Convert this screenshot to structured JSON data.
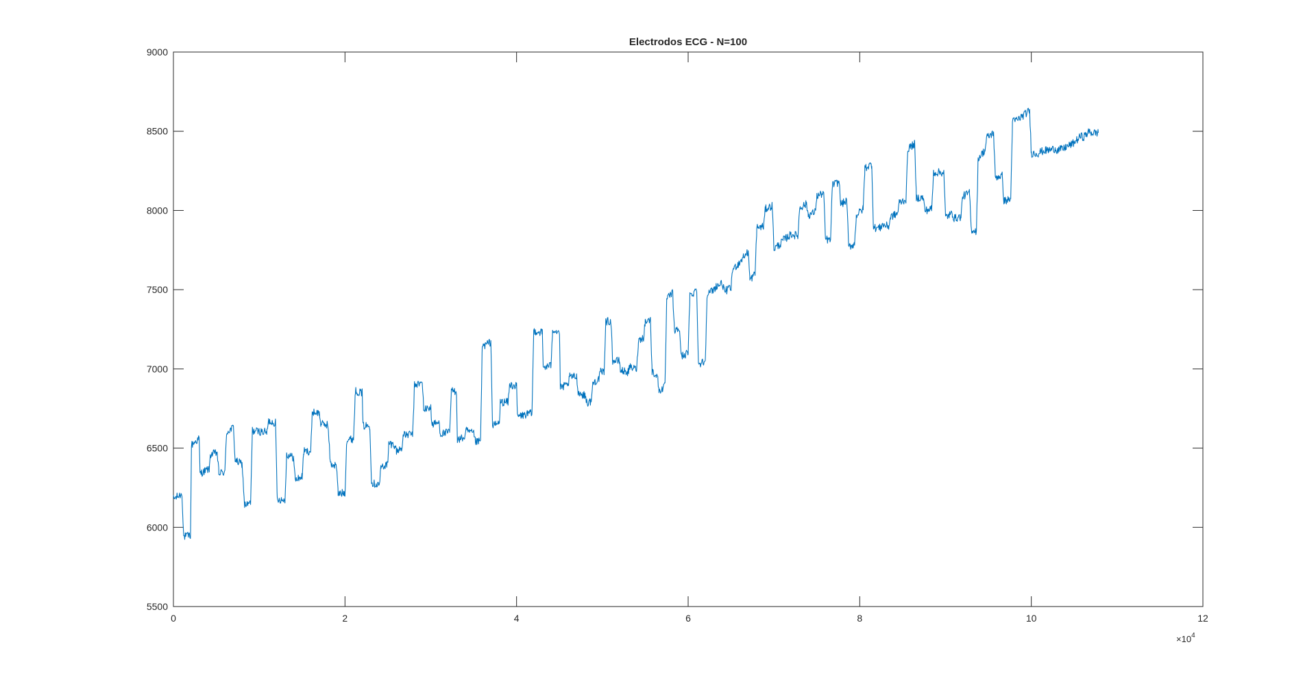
{
  "figure": {
    "background": "#ffffff",
    "axes_color": "#262626",
    "line_color": "#0072BD"
  },
  "chart_data": {
    "type": "line",
    "title": "Electrodos ECG - N=100",
    "xlabel": "",
    "ylabel": "",
    "xlim": [
      0,
      120000
    ],
    "ylim": [
      5500,
      9000
    ],
    "x_exponent_label": "×10",
    "x_exponent_power": "4",
    "x_ticks": [
      0,
      20000,
      40000,
      60000,
      80000,
      100000,
      120000
    ],
    "x_tick_labels": [
      "0",
      "2",
      "4",
      "6",
      "8",
      "10",
      "12"
    ],
    "y_ticks": [
      5500,
      6000,
      6500,
      7000,
      7500,
      8000,
      8500,
      9000
    ],
    "y_tick_labels": [
      "5500",
      "6000",
      "6500",
      "7000",
      "7500",
      "8000",
      "8500",
      "9000"
    ],
    "grid": false,
    "noise_amplitude": 25,
    "series": [
      {
        "levels": [
          [
            0,
            6180
          ],
          [
            1000,
            6210
          ],
          [
            1200,
            5940
          ],
          [
            2000,
            5950
          ],
          [
            2100,
            6520
          ],
          [
            3000,
            6560
          ],
          [
            3100,
            6340
          ],
          [
            4200,
            6370
          ],
          [
            4300,
            6460
          ],
          [
            5100,
            6470
          ],
          [
            5300,
            6340
          ],
          [
            6000,
            6350
          ],
          [
            6200,
            6600
          ],
          [
            7000,
            6630
          ],
          [
            7200,
            6420
          ],
          [
            8000,
            6400
          ],
          [
            8300,
            6140
          ],
          [
            9000,
            6150
          ],
          [
            9200,
            6610
          ],
          [
            10900,
            6600
          ],
          [
            11100,
            6670
          ],
          [
            11900,
            6660
          ],
          [
            12100,
            6180
          ],
          [
            13000,
            6170
          ],
          [
            13200,
            6460
          ],
          [
            14000,
            6440
          ],
          [
            14200,
            6300
          ],
          [
            15000,
            6320
          ],
          [
            15200,
            6480
          ],
          [
            16000,
            6480
          ],
          [
            16200,
            6730
          ],
          [
            17000,
            6720
          ],
          [
            17200,
            6650
          ],
          [
            18000,
            6650
          ],
          [
            18300,
            6400
          ],
          [
            19000,
            6390
          ],
          [
            19200,
            6210
          ],
          [
            20000,
            6220
          ],
          [
            20200,
            6550
          ],
          [
            21000,
            6560
          ],
          [
            21200,
            6860
          ],
          [
            22000,
            6850
          ],
          [
            22100,
            6640
          ],
          [
            22900,
            6640
          ],
          [
            23100,
            6280
          ],
          [
            24000,
            6270
          ],
          [
            24200,
            6380
          ],
          [
            25000,
            6400
          ],
          [
            25100,
            6530
          ],
          [
            25800,
            6520
          ],
          [
            26000,
            6480
          ],
          [
            26600,
            6500
          ],
          [
            26800,
            6580
          ],
          [
            27900,
            6590
          ],
          [
            28100,
            6900
          ],
          [
            29000,
            6910
          ],
          [
            29200,
            6740
          ],
          [
            30000,
            6760
          ],
          [
            30100,
            6650
          ],
          [
            31000,
            6660
          ],
          [
            31100,
            6590
          ],
          [
            32200,
            6600
          ],
          [
            32400,
            6860
          ],
          [
            33000,
            6860
          ],
          [
            33100,
            6550
          ],
          [
            34000,
            6570
          ],
          [
            34100,
            6610
          ],
          [
            35000,
            6590
          ],
          [
            35200,
            6540
          ],
          [
            35800,
            6540
          ],
          [
            36000,
            7140
          ],
          [
            37000,
            7170
          ],
          [
            37200,
            6640
          ],
          [
            38000,
            6660
          ],
          [
            38100,
            6790
          ],
          [
            39000,
            6790
          ],
          [
            39200,
            6900
          ],
          [
            40000,
            6890
          ],
          [
            40100,
            6700
          ],
          [
            41800,
            6720
          ],
          [
            42000,
            7240
          ],
          [
            43000,
            7230
          ],
          [
            43100,
            7010
          ],
          [
            44000,
            7020
          ],
          [
            44200,
            7250
          ],
          [
            45000,
            7230
          ],
          [
            45100,
            6880
          ],
          [
            46000,
            6900
          ],
          [
            46200,
            6950
          ],
          [
            47000,
            6950
          ],
          [
            47200,
            6850
          ],
          [
            48000,
            6830
          ],
          [
            48300,
            6780
          ],
          [
            48700,
            6800
          ],
          [
            48900,
            6910
          ],
          [
            49600,
            6940
          ],
          [
            49800,
            6980
          ],
          [
            50200,
            6980
          ],
          [
            50400,
            7300
          ],
          [
            51000,
            7300
          ],
          [
            51200,
            7050
          ],
          [
            52000,
            7050
          ],
          [
            52100,
            6990
          ],
          [
            53000,
            6980
          ],
          [
            53200,
            7010
          ],
          [
            54000,
            7000
          ],
          [
            54200,
            7180
          ],
          [
            54800,
            7200
          ],
          [
            55000,
            7300
          ],
          [
            55600,
            7310
          ],
          [
            55800,
            6980
          ],
          [
            56400,
            6960
          ],
          [
            56600,
            6860
          ],
          [
            57300,
            6890
          ],
          [
            57500,
            7440
          ],
          [
            58200,
            7480
          ],
          [
            58400,
            7240
          ],
          [
            59000,
            7250
          ],
          [
            59200,
            7080
          ],
          [
            60000,
            7100
          ],
          [
            60200,
            7460
          ],
          [
            61000,
            7500
          ],
          [
            61200,
            7030
          ],
          [
            62000,
            7050
          ],
          [
            62200,
            7470
          ],
          [
            63000,
            7500
          ],
          [
            63200,
            7520
          ],
          [
            64000,
            7540
          ],
          [
            64200,
            7490
          ],
          [
            65000,
            7510
          ],
          [
            65200,
            7630
          ],
          [
            66000,
            7670
          ],
          [
            66200,
            7690
          ],
          [
            67000,
            7740
          ],
          [
            67200,
            7560
          ],
          [
            67800,
            7600
          ],
          [
            68000,
            7890
          ],
          [
            68800,
            7900
          ],
          [
            69000,
            8010
          ],
          [
            69800,
            8030
          ],
          [
            70000,
            7760
          ],
          [
            70800,
            7790
          ],
          [
            71000,
            7810
          ],
          [
            71800,
            7840
          ],
          [
            72000,
            7850
          ],
          [
            72800,
            7840
          ],
          [
            73000,
            8020
          ],
          [
            73800,
            8040
          ],
          [
            74000,
            7970
          ],
          [
            74800,
            7990
          ],
          [
            75000,
            8090
          ],
          [
            75800,
            8110
          ],
          [
            76000,
            7820
          ],
          [
            76600,
            7810
          ],
          [
            76800,
            8160
          ],
          [
            77600,
            8180
          ],
          [
            77800,
            8040
          ],
          [
            78500,
            8060
          ],
          [
            78700,
            7770
          ],
          [
            79400,
            7790
          ],
          [
            79600,
            7970
          ],
          [
            80400,
            8010
          ],
          [
            80600,
            8270
          ],
          [
            81400,
            8290
          ],
          [
            81600,
            7890
          ],
          [
            82400,
            7890
          ],
          [
            82600,
            7910
          ],
          [
            83400,
            7900
          ],
          [
            83600,
            7960
          ],
          [
            84400,
            7980
          ],
          [
            84600,
            8050
          ],
          [
            85400,
            8070
          ],
          [
            85600,
            8390
          ],
          [
            86400,
            8420
          ],
          [
            86600,
            8080
          ],
          [
            87400,
            8080
          ],
          [
            87600,
            8000
          ],
          [
            88400,
            8010
          ],
          [
            88600,
            8240
          ],
          [
            89800,
            8240
          ],
          [
            90000,
            7960
          ],
          [
            90800,
            7980
          ],
          [
            91000,
            7950
          ],
          [
            91800,
            7960
          ],
          [
            92000,
            8090
          ],
          [
            92800,
            8110
          ],
          [
            93000,
            7880
          ],
          [
            93600,
            7870
          ],
          [
            93800,
            8330
          ],
          [
            94600,
            8380
          ],
          [
            94800,
            8460
          ],
          [
            95600,
            8490
          ],
          [
            95800,
            8210
          ],
          [
            96600,
            8220
          ],
          [
            96800,
            8060
          ],
          [
            97600,
            8070
          ],
          [
            97800,
            8560
          ],
          [
            98600,
            8580
          ],
          [
            98800,
            8590
          ],
          [
            99800,
            8630
          ],
          [
            100000,
            8360
          ],
          [
            100800,
            8360
          ],
          [
            101000,
            8370
          ],
          [
            101800,
            8380
          ],
          [
            102000,
            8380
          ],
          [
            102800,
            8390
          ],
          [
            103000,
            8380
          ],
          [
            103800,
            8390
          ],
          [
            104000,
            8400
          ],
          [
            104800,
            8420
          ],
          [
            105000,
            8430
          ],
          [
            105800,
            8470
          ],
          [
            106000,
            8460
          ],
          [
            106800,
            8500
          ],
          [
            107000,
            8490
          ],
          [
            107800,
            8490
          ]
        ]
      }
    ]
  }
}
